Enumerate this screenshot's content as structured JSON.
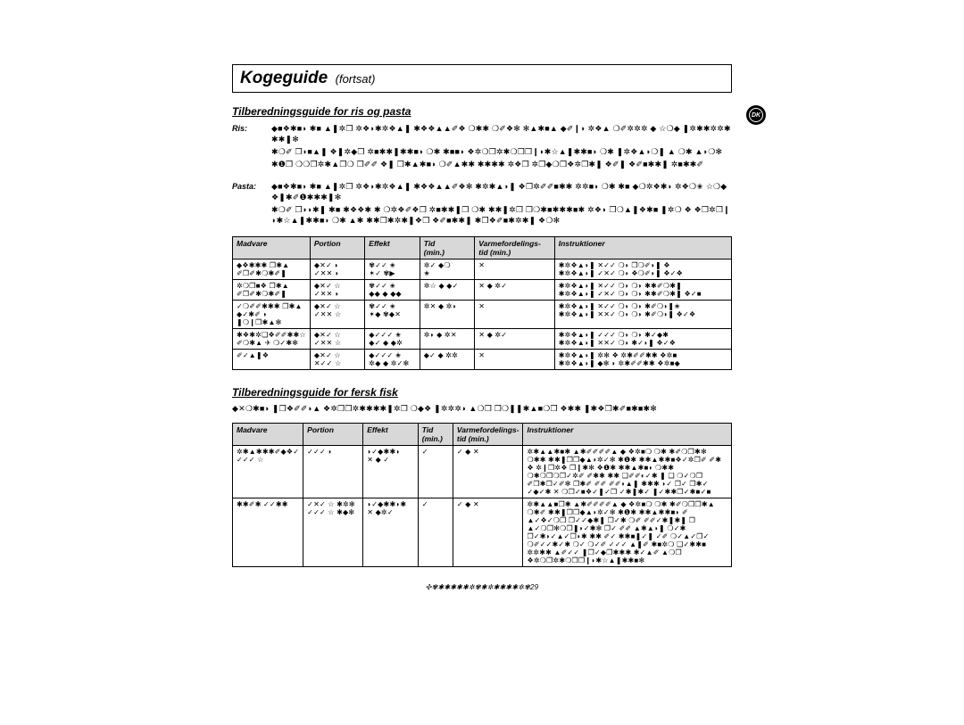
{
  "title": {
    "main": "Kogeguide",
    "sub": "(fortsat)"
  },
  "badge": "DK",
  "section1": {
    "heading": "Tilberedningsguide for ris og pasta",
    "notes": [
      {
        "label": "Ris:",
        "paras": [
          "◆■❖✱■◗ ✱■ ▲❚✲❒ ✲❖◗✱✲❖▲❚ ✱❖❖▲▲✐❖ ❍✱✱ ❍✐❖✻ ✻▲✱■▲ ◆✐❙◗ ✲❖▲ ❍✐✲✲✲ ◆ ☆❍◆ ❚✲✱✱✲✲✱✱✱❚✻",
          "✱❍✐ ❒◗■▲❚ ❖❚✲◆❒ ✲■✱✱❚✱✱■◗ ❍✱ ✱■■◗ ❖✲❍❒✲✱❍❒❒❙◗✱☆▲❚✱✱■◗ ❍✱ ❚✲❖▲◗❍❚ ▲ ❍✱ ▲◗❍✻",
          "✱❶❒ ❍❍❒✲✱▲❒❍ ❒✐✐ ❖❚ ❒✱▲✱■◗ ❍✐▲✱✱ ✱✱✱✱ ✲❖❒ ✲❒◆❍❒❖✲❒✱❚ ❖✐❚ ❖✐■✱✱❚ ✲■✱✱✐"
        ]
      },
      {
        "label": "Pasta:",
        "paras": [
          "◆■❖✱■◗ ✱■ ▲❚✲❒ ✲❖◗✱✲❖▲❚ ✱❖❖▲▲✐❖✻ ✱✲✱▲◗❚ ❖❒✲✐✐■✱✱ ✲✲■◗ ❍✱ ✱■ ◆❍✲❖✱◗ ✲❖❍✬ ☆❍◆ ❖❚✱✐❶✱✱✱❚✻",
          "✱❍✐ ❒◗◗✱❚ ✱■ ✱❖❖✱ ✱ ❍✲❖✐❖❒ ✲■✱✱❚❒ ❍✱ ✱✱❚✲❒ ❒❍✱■✱✱✱■✱ ✲❖◗ ❒❍▲❚❖✱■ ❚✲❍ ❖ ❖❒✲❒❙◗✱☆▲❚✱✱■◗ ❍✱ ▲✱ ✱✱❒✱✲✱❚❖❒ ❖✐■✱✱❚ ✱❒❖✐■✱✲✱❚ ❖❍✻"
        ]
      }
    ],
    "columns": [
      "Madvare",
      "Portion",
      "Effekt",
      "Tid\n(min.)",
      "Varmefordelings-\ntid (min.)",
      "Instruktioner"
    ],
    "rows": [
      {
        "c0": "◆❖✱✱✱ ❒✱▲\n✐❒✐✱❍✱✐❚",
        "c1": "◆✕✓ ◗\n✓✕✕ ◗",
        "c2": "✾✓✓ ✬\n✶✓ ✾▶",
        "c3": "✲✓ ◆❍\n✬",
        "c4": "✕\n",
        "c5": "✱✲❖▲◗❚ ✕✓✓ ❍◗ ❒❍✐◗❚ ❖\n✱✲❖▲◗❚ ✓✕✓ ❍◗ ❖❍✐◗❚ ❖✓❖"
      },
      {
        "c0": "✲❍❒■❖ ❒✱▲\n✐❒✐✱❍✱✐❚",
        "c1": "◆✕✓ ☆\n✓✕✕ ◗",
        "c2": "✾✓✓ ✬\n◆◆ ◆ ◆◆",
        "c3": "✲☆ ◆ ◆✓\n",
        "c4": "✕ ◆ ✲✓\n",
        "c5": "✱✲❖▲◗❚ ✕✓✓ ❍◗ ❍◗ ✱✱✐❍✱❚\n✱✲❖▲◗❚ ✓✕✓ ❍◗ ❍◗ ✱✱✐❍✱❚ ❖✓■"
      },
      {
        "c0": "✓❍✐✐✱✱✱ ❒✱▲\n◆✓✱✐ ◗ ❚❍❙❒✱▲✻",
        "c1": "◆✕✓ ☆\n✓✕✕ ☆",
        "c2": "✾✓✓ ✬\n✶◆ ✾◆✕",
        "c3": "✲✕ ◆ ✲◗\n",
        "c4": "✕\n",
        "c5": "✱✲❖▲◗❚ ✕✓✓ ❍◗ ❍◗ ✱✐❍◗❚✬\n✱✲❖▲◗❚ ✕✕✓ ❍◗ ❍◗ ✱✐❍◗❚ ❖✓❖"
      },
      {
        "c0": "✱❖✱✲❑❖✐✐✱✱☆\n✐❍✱▲ ✈ ❍✓✱✻",
        "c1": "◆✕✓ ☆\n✓✕✕ ☆",
        "c2": "◆✓✓✓ ✬\n◆✓ ◆ ◆✲",
        "c3": "✲◗ ◆ ✲✕\n",
        "c4": "✕ ◆ ✲✓\n",
        "c5": "✱✲❖▲◗❚ ✓✓✓ ❍◗ ❍◗ ✱✓◆✱\n✱✲❖▲◗❚ ✕✕✓ ❍◗ ✱✓◗❚ ❖✓❖"
      },
      {
        "c0": "✐✓▲❚❖",
        "c1": "◆✕✓ ☆\n✕✓✓ ☆",
        "c2": "◆✓✓✓ ✬\n✲◆ ◆ ✲✓✻",
        "c3": "◆✓ ◆ ✲✲\n",
        "c4": "✕\n",
        "c5": "✱✲❖▲◗❚ ✲✻ ❖ ✲✱✐✐✱✱ ❖✲■\n✱✲❖▲◗❚ ◆✻ ◗ ✲✱✐✐✱✱ ❖✲■◆"
      }
    ]
  },
  "section2": {
    "heading": "Tilberedningsguide for fersk fisk",
    "lead": "◆✕❍✱■◗ ❚❒❖✐✐◗▲ ❖✲❒❒✲✱✱✱✱❚✲❒ ❍◆❖ ❚✲✲✲◗ ▲❍❒ ❒❍❚❚✱▲■❍❒ ❖✱✱ ❚✱❖❒✱✐■✱■✱✻",
    "columns": [
      "Madvare",
      "Portion",
      "Effekt",
      "Tid\n(min.)",
      "Varmefordelings-\ntid (min.)",
      "Instruktioner"
    ],
    "rows": [
      {
        "c0": "✲✱▲✱✱✱✐◆❖✓\n✓✓✓ ☆",
        "c1": "✓✓✓ ◗",
        "c2": "◗✓◆✱✱◗\n✕ ◆ ✓",
        "c3": "✓",
        "c4": "✓ ◆ ✕",
        "c5": "✲✱▲▲✱■✱ ▲✱✐✐✐✐▲ ◆ ❖✲■❍ ❍✱ ✱✐❍❒✱✻ ❍✱✱ ✱✱❚❒❒◆▲◗✲✓✻ ✱❶✱ ✱✱▲✱✱■❖✓✲❒✐ ✐✱ ❖ ✲❙❒✲❖ ❒❙✱✻ ❖❶✱ ✱✱▲✱■◗ ❍✱✱ ❍✱❍❒❍❐✓✲✐ ✐✱✱ ✱✱ ❑✐✐◐✓✱ ❚ ❑ ❍✓❍❒ ✐❐✱❐✓✐✻ ❐✱✐ ✐✐ ✐✐◗▲❚ ✱✱✱ ◗✓ ❐✓ ❐✱✓ ✓◆✓✱ ✕ ❍❐✓■❖✓❚✓❒ ✓✱❚✱✓ ❚✓✱✱❐✓✱■✓■"
      },
      {
        "c0": "✱✱✐✱ ✓✓✱✱",
        "c1": "✓✕✓ ☆ ✱✲✻\n✓✓✓ ☆ ✱◆✻",
        "c2": "◗✓◆✱✱◗✱\n✕ ◆✲✓",
        "c3": "✓",
        "c4": "✓ ◆ ✕",
        "c5": "✲✱▲▲■❐✱ ▲✱✐✐✐✐▲ ◆ ❖✲■❍ ❍✱ ✱✐❍❒❒✱▲ ❍✱✐ ✱✱❚❒❒◆▲◗✲✓✻ ✱❶✱ ✱✱▲✱✱■◗ ✐ ▲✓❖✓❍❐ ❐✓✓◆✱❚ ❐✓✱ ❍✐ ✐✐✓✱❚✱❚ ❐ ▲✓❍❒✻❍❐❚◗✓✱✻ ❐✓ ✐✐ ▲✱▲◗❚ ❍✓✱ ❒✓✱◗✓▲✓❒◗✱ ✱✱ ✐✓ ✱✱■❚✓❚ ✓✐ ❍✓▲✓❒✓ ❍✐✓✓✱✓✱ ❍✓ ❍✓✐ ✓✓✓ ▲❚✐ ✱■✲❍ ❑✓✱✱■ ✲✲✱✱ ▲✐✓✓ ❚❒✓◆❐✱✱✱ ✱✓▲✐ ▲❍❒ ❖✲❍❒✲✱❍❒❒❙◗✱☆▲❚✱✱■✻"
      }
    ]
  },
  "footer": "✣✾✱✱✱✱✱✲✾✱✲✱✱✱✱✲✾29"
}
